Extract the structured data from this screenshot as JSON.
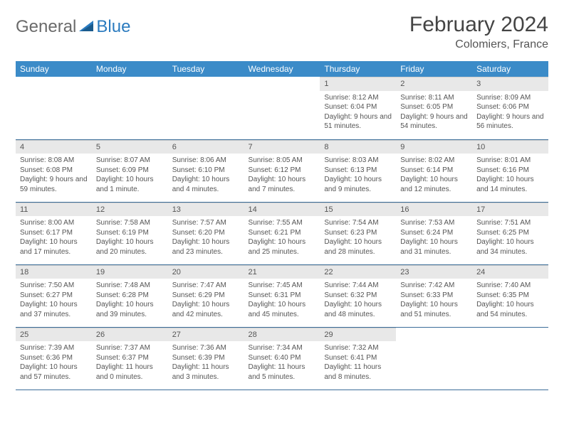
{
  "logo": {
    "text1": "General",
    "text2": "Blue"
  },
  "title": "February 2024",
  "location": "Colomiers, France",
  "colors": {
    "header_bg": "#3b8bc8",
    "header_text": "#ffffff",
    "daynum_bg": "#e8e8e8",
    "row_divider": "#3b6d99",
    "logo_grey": "#6a6a6a",
    "logo_blue": "#2b7bbf",
    "body_text": "#555555"
  },
  "day_headers": [
    "Sunday",
    "Monday",
    "Tuesday",
    "Wednesday",
    "Thursday",
    "Friday",
    "Saturday"
  ],
  "weeks": [
    [
      {
        "day": "",
        "sunrise": "",
        "sunset": "",
        "daylight": ""
      },
      {
        "day": "",
        "sunrise": "",
        "sunset": "",
        "daylight": ""
      },
      {
        "day": "",
        "sunrise": "",
        "sunset": "",
        "daylight": ""
      },
      {
        "day": "",
        "sunrise": "",
        "sunset": "",
        "daylight": ""
      },
      {
        "day": "1",
        "sunrise": "Sunrise: 8:12 AM",
        "sunset": "Sunset: 6:04 PM",
        "daylight": "Daylight: 9 hours and 51 minutes."
      },
      {
        "day": "2",
        "sunrise": "Sunrise: 8:11 AM",
        "sunset": "Sunset: 6:05 PM",
        "daylight": "Daylight: 9 hours and 54 minutes."
      },
      {
        "day": "3",
        "sunrise": "Sunrise: 8:09 AM",
        "sunset": "Sunset: 6:06 PM",
        "daylight": "Daylight: 9 hours and 56 minutes."
      }
    ],
    [
      {
        "day": "4",
        "sunrise": "Sunrise: 8:08 AM",
        "sunset": "Sunset: 6:08 PM",
        "daylight": "Daylight: 9 hours and 59 minutes."
      },
      {
        "day": "5",
        "sunrise": "Sunrise: 8:07 AM",
        "sunset": "Sunset: 6:09 PM",
        "daylight": "Daylight: 10 hours and 1 minute."
      },
      {
        "day": "6",
        "sunrise": "Sunrise: 8:06 AM",
        "sunset": "Sunset: 6:10 PM",
        "daylight": "Daylight: 10 hours and 4 minutes."
      },
      {
        "day": "7",
        "sunrise": "Sunrise: 8:05 AM",
        "sunset": "Sunset: 6:12 PM",
        "daylight": "Daylight: 10 hours and 7 minutes."
      },
      {
        "day": "8",
        "sunrise": "Sunrise: 8:03 AM",
        "sunset": "Sunset: 6:13 PM",
        "daylight": "Daylight: 10 hours and 9 minutes."
      },
      {
        "day": "9",
        "sunrise": "Sunrise: 8:02 AM",
        "sunset": "Sunset: 6:14 PM",
        "daylight": "Daylight: 10 hours and 12 minutes."
      },
      {
        "day": "10",
        "sunrise": "Sunrise: 8:01 AM",
        "sunset": "Sunset: 6:16 PM",
        "daylight": "Daylight: 10 hours and 14 minutes."
      }
    ],
    [
      {
        "day": "11",
        "sunrise": "Sunrise: 8:00 AM",
        "sunset": "Sunset: 6:17 PM",
        "daylight": "Daylight: 10 hours and 17 minutes."
      },
      {
        "day": "12",
        "sunrise": "Sunrise: 7:58 AM",
        "sunset": "Sunset: 6:19 PM",
        "daylight": "Daylight: 10 hours and 20 minutes."
      },
      {
        "day": "13",
        "sunrise": "Sunrise: 7:57 AM",
        "sunset": "Sunset: 6:20 PM",
        "daylight": "Daylight: 10 hours and 23 minutes."
      },
      {
        "day": "14",
        "sunrise": "Sunrise: 7:55 AM",
        "sunset": "Sunset: 6:21 PM",
        "daylight": "Daylight: 10 hours and 25 minutes."
      },
      {
        "day": "15",
        "sunrise": "Sunrise: 7:54 AM",
        "sunset": "Sunset: 6:23 PM",
        "daylight": "Daylight: 10 hours and 28 minutes."
      },
      {
        "day": "16",
        "sunrise": "Sunrise: 7:53 AM",
        "sunset": "Sunset: 6:24 PM",
        "daylight": "Daylight: 10 hours and 31 minutes."
      },
      {
        "day": "17",
        "sunrise": "Sunrise: 7:51 AM",
        "sunset": "Sunset: 6:25 PM",
        "daylight": "Daylight: 10 hours and 34 minutes."
      }
    ],
    [
      {
        "day": "18",
        "sunrise": "Sunrise: 7:50 AM",
        "sunset": "Sunset: 6:27 PM",
        "daylight": "Daylight: 10 hours and 37 minutes."
      },
      {
        "day": "19",
        "sunrise": "Sunrise: 7:48 AM",
        "sunset": "Sunset: 6:28 PM",
        "daylight": "Daylight: 10 hours and 39 minutes."
      },
      {
        "day": "20",
        "sunrise": "Sunrise: 7:47 AM",
        "sunset": "Sunset: 6:29 PM",
        "daylight": "Daylight: 10 hours and 42 minutes."
      },
      {
        "day": "21",
        "sunrise": "Sunrise: 7:45 AM",
        "sunset": "Sunset: 6:31 PM",
        "daylight": "Daylight: 10 hours and 45 minutes."
      },
      {
        "day": "22",
        "sunrise": "Sunrise: 7:44 AM",
        "sunset": "Sunset: 6:32 PM",
        "daylight": "Daylight: 10 hours and 48 minutes."
      },
      {
        "day": "23",
        "sunrise": "Sunrise: 7:42 AM",
        "sunset": "Sunset: 6:33 PM",
        "daylight": "Daylight: 10 hours and 51 minutes."
      },
      {
        "day": "24",
        "sunrise": "Sunrise: 7:40 AM",
        "sunset": "Sunset: 6:35 PM",
        "daylight": "Daylight: 10 hours and 54 minutes."
      }
    ],
    [
      {
        "day": "25",
        "sunrise": "Sunrise: 7:39 AM",
        "sunset": "Sunset: 6:36 PM",
        "daylight": "Daylight: 10 hours and 57 minutes."
      },
      {
        "day": "26",
        "sunrise": "Sunrise: 7:37 AM",
        "sunset": "Sunset: 6:37 PM",
        "daylight": "Daylight: 11 hours and 0 minutes."
      },
      {
        "day": "27",
        "sunrise": "Sunrise: 7:36 AM",
        "sunset": "Sunset: 6:39 PM",
        "daylight": "Daylight: 11 hours and 3 minutes."
      },
      {
        "day": "28",
        "sunrise": "Sunrise: 7:34 AM",
        "sunset": "Sunset: 6:40 PM",
        "daylight": "Daylight: 11 hours and 5 minutes."
      },
      {
        "day": "29",
        "sunrise": "Sunrise: 7:32 AM",
        "sunset": "Sunset: 6:41 PM",
        "daylight": "Daylight: 11 hours and 8 minutes."
      },
      {
        "day": "",
        "sunrise": "",
        "sunset": "",
        "daylight": ""
      },
      {
        "day": "",
        "sunrise": "",
        "sunset": "",
        "daylight": ""
      }
    ]
  ]
}
